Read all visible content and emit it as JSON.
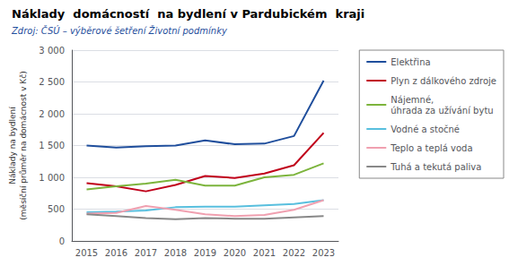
{
  "chart_data": {
    "type": "line",
    "title": "Náklady  domácností  na bydlení v Pardubickém  kraji",
    "subtitle": "Zdroj: ČSÚ – výběrové šetření Životní podmínky",
    "ylabel": "Náklady na bydlení\n(měsíční průměr na domácnost v Kč)",
    "categories": [
      "2015",
      "2016",
      "2017",
      "2018",
      "2019",
      "2020",
      "2021",
      "2022",
      "2023"
    ],
    "series": [
      {
        "name": "Elektřina",
        "color": "#1F4E9C",
        "values": [
          1500,
          1470,
          1490,
          1500,
          1580,
          1520,
          1530,
          1650,
          2520
        ]
      },
      {
        "name": "Plyn z dálkového zdroje",
        "color": "#C0001A",
        "values": [
          910,
          860,
          780,
          880,
          1020,
          990,
          1060,
          1190,
          1700
        ]
      },
      {
        "name": "Nájemné,\núhrada za užívání bytu",
        "color": "#7CB43C",
        "values": [
          810,
          860,
          900,
          960,
          870,
          870,
          1000,
          1040,
          1220
        ]
      },
      {
        "name": "Vodné a stočné",
        "color": "#58BFDE",
        "values": [
          450,
          460,
          480,
          530,
          540,
          540,
          560,
          580,
          640
        ]
      },
      {
        "name": "Teplo a teplá voda",
        "color": "#F0A0B0",
        "values": [
          430,
          440,
          550,
          490,
          420,
          390,
          410,
          490,
          640
        ]
      },
      {
        "name": "Tuhá a tekutá paliva",
        "color": "#888888",
        "values": [
          420,
          390,
          360,
          340,
          360,
          350,
          350,
          370,
          390
        ]
      }
    ],
    "ylim": [
      0,
      3000
    ],
    "yticks": [
      0,
      500,
      {
        "value": 1000,
        "label": "1 000"
      },
      {
        "value": 1500,
        "label": "1 500"
      },
      {
        "value": 2000,
        "label": "2 000"
      },
      {
        "value": 2500,
        "label": "2 500"
      },
      {
        "value": 3000,
        "label": "3 000"
      }
    ],
    "grid": true,
    "legend": "right"
  }
}
